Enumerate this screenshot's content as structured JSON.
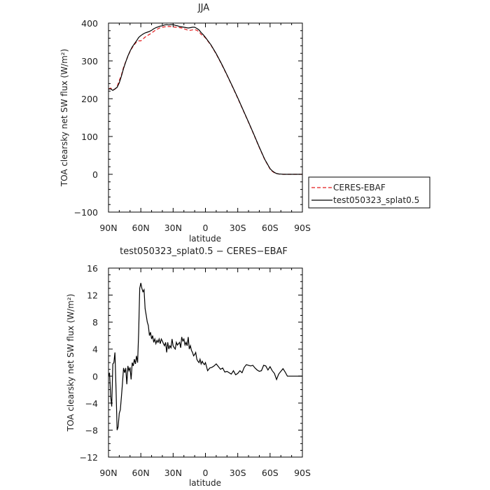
{
  "chart_data": [
    {
      "type": "line",
      "title": "JJA",
      "xlabel": "latitude",
      "ylabel": "TOA clearsky net SW flux (W/m²)",
      "xlim": [
        90,
        -90
      ],
      "ylim": [
        -100,
        400
      ],
      "grid": false,
      "legend": "right",
      "x_tick_values": [
        90,
        60,
        30,
        0,
        -30,
        -60,
        -90
      ],
      "x_tick_labels": [
        "90N",
        "60N",
        "30N",
        "0",
        "30S",
        "60S",
        "90S"
      ],
      "y_tick_values": [
        -100,
        0,
        100,
        200,
        300,
        400
      ],
      "y_tick_labels": [
        "−100",
        "0",
        "100",
        "200",
        "300",
        "400"
      ],
      "x": [
        90,
        88,
        86,
        84,
        82,
        80,
        78,
        76,
        74,
        72,
        70,
        68,
        66,
        64,
        62,
        60,
        58,
        56,
        54,
        52,
        50,
        48,
        46,
        44,
        42,
        40,
        38,
        36,
        34,
        32,
        30,
        28,
        26,
        24,
        22,
        20,
        18,
        16,
        14,
        12,
        10,
        8,
        6,
        4,
        2,
        0,
        -5,
        -10,
        -15,
        -20,
        -25,
        -30,
        -35,
        -40,
        -45,
        -50,
        -55,
        -60,
        -62,
        -64,
        -66,
        -68,
        -70,
        -72,
        -75,
        -80,
        -85,
        -90
      ],
      "series": [
        {
          "name": "CERES-EBAF",
          "color": "#e41a1c",
          "dash": "dashed",
          "values": [
            226,
            228,
            224,
            225,
            232,
            248,
            263,
            283,
            298,
            312,
            325,
            335,
            343,
            350,
            353,
            353,
            358,
            363,
            367,
            370,
            374,
            378,
            382,
            385,
            388,
            389,
            390,
            391,
            391,
            391,
            390,
            389,
            389,
            388,
            387,
            385,
            383,
            381,
            381,
            382,
            383,
            381,
            377,
            370,
            366,
            361,
            342,
            318,
            291,
            262,
            232,
            201,
            169,
            137,
            104,
            71,
            39,
            14,
            8,
            4,
            2,
            1,
            0.5,
            0,
            0,
            0,
            0,
            0
          ]
        },
        {
          "name": "test050323_splat0.5",
          "color": "#000000",
          "dash": "solid",
          "values": [
            226,
            226,
            222,
            226,
            230,
            242,
            260,
            280,
            297,
            313,
            326,
            337,
            345,
            353,
            362,
            367,
            371,
            374,
            376,
            378,
            381,
            385,
            388,
            390,
            392,
            393,
            395,
            396,
            395,
            396,
            396,
            394,
            393,
            391,
            390,
            389,
            388,
            387,
            388,
            389,
            389,
            386,
            382,
            375,
            369,
            362,
            343,
            319,
            292,
            263,
            233,
            202,
            170,
            138,
            105,
            72,
            40,
            15,
            9,
            5,
            2,
            1,
            0.5,
            0,
            0,
            0,
            0,
            0
          ]
        }
      ]
    },
    {
      "type": "line",
      "title": "test050323_splat0.5 − CERES−EBAF",
      "xlabel": "latitude",
      "ylabel": "TOA clearsky net SW flux (W/m²)",
      "xlim": [
        90,
        -90
      ],
      "ylim": [
        -12,
        16
      ],
      "grid": false,
      "x_tick_values": [
        90,
        60,
        30,
        0,
        -30,
        -60,
        -90
      ],
      "x_tick_labels": [
        "90N",
        "60N",
        "30N",
        "0",
        "30S",
        "60S",
        "90S"
      ],
      "y_tick_values": [
        -12,
        -8,
        -4,
        0,
        4,
        8,
        12,
        16
      ],
      "y_tick_labels": [
        "−12",
        "−8",
        "−4",
        "0",
        "4",
        "8",
        "12",
        "16"
      ],
      "x": [
        90,
        89,
        88,
        87,
        86,
        85,
        84,
        83,
        82,
        81,
        80,
        79,
        78,
        77,
        76,
        75,
        74,
        73,
        72,
        71,
        70,
        69,
        68,
        67,
        66,
        65,
        64,
        63,
        62,
        61,
        60,
        59,
        58,
        57,
        56,
        55,
        54,
        53,
        52,
        51,
        50,
        49,
        48,
        47,
        46,
        45,
        44,
        43,
        42,
        41,
        40,
        39,
        38,
        37,
        36,
        35,
        34,
        33,
        32,
        31,
        30,
        29,
        28,
        27,
        26,
        25,
        24,
        23,
        22,
        21,
        20,
        19,
        18,
        17,
        16,
        15,
        14,
        13,
        12,
        11,
        10,
        9,
        8,
        7,
        6,
        5,
        4,
        3,
        2,
        1,
        0,
        -2,
        -4,
        -6,
        -8,
        -10,
        -12,
        -14,
        -16,
        -18,
        -20,
        -22,
        -24,
        -26,
        -28,
        -30,
        -32,
        -34,
        -36,
        -38,
        -40,
        -42,
        -44,
        -46,
        -48,
        -50,
        -52,
        -54,
        -56,
        -58,
        -60,
        -62,
        -64,
        -66,
        -68,
        -70,
        -72,
        -74,
        -76,
        -78,
        -80,
        -82,
        -84,
        -86,
        -88,
        -90
      ],
      "series": [
        {
          "name": "",
          "color": "#000000",
          "values": [
            0,
            0.5,
            -3,
            -4.5,
            1.8,
            2,
            3.5,
            -2,
            -8,
            -7.5,
            -5.5,
            -5,
            -3,
            -1,
            1.2,
            0.5,
            1.2,
            -1.2,
            1.5,
            0.8,
            1.3,
            -0.5,
            2,
            1.5,
            2.5,
            1.8,
            3,
            2,
            6.5,
            13,
            13.8,
            13,
            12.5,
            12.8,
            10,
            9,
            8,
            7.5,
            6,
            6.5,
            5.5,
            6,
            5,
            5.5,
            4.8,
            5.3,
            5,
            5.5,
            4.8,
            5.5,
            5.2,
            4.8,
            4.5,
            5,
            3.5,
            5,
            4,
            4.5,
            4.2,
            5.5,
            4.5,
            4.2,
            4,
            5,
            4.6,
            4.8,
            5,
            4.2,
            5.8,
            5.2,
            5.5,
            4.6,
            5,
            4.5,
            5.8,
            4,
            4.5,
            3.8,
            3.5,
            3,
            3.2,
            3.5,
            2.5,
            2.2,
            2,
            2.5,
            1.8,
            2.2,
            1.9,
            1.7,
            2,
            0.8,
            1.2,
            1.3,
            1.5,
            1.8,
            1.4,
            1,
            1.2,
            0.6,
            0.7,
            0.5,
            0.3,
            0.8,
            0.2,
            0.4,
            0.8,
            0.5,
            1.3,
            1.7,
            1.6,
            1.5,
            1.6,
            1.2,
            0.9,
            0.7,
            0.8,
            1.6,
            1.5,
            0.9,
            1.4,
            0.8,
            0.4,
            -0.5,
            0.3,
            0.7,
            1.1,
            0.6,
            0,
            0,
            0,
            0,
            0,
            0,
            0,
            0
          ]
        }
      ]
    }
  ]
}
